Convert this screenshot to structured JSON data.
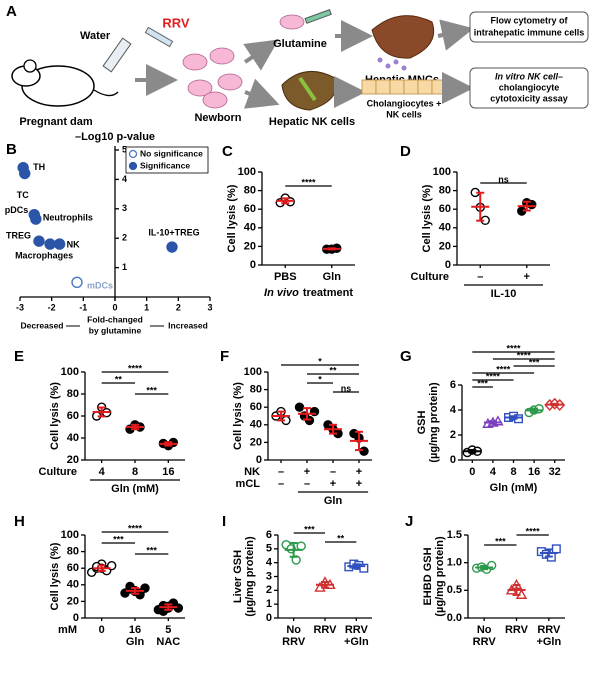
{
  "schematic": {
    "letter": "A",
    "water": "Water",
    "rrv": "RRV",
    "dam": "Pregnant dam",
    "newborn": "Newborn",
    "glutamine": "Glutamine",
    "hepatic_mncs": "Hepatic MNCs",
    "flow": [
      "Flow cytometry of",
      "intrahepatic immune cells"
    ],
    "hepatic_nk": "Hepatic NK cells",
    "cocult": [
      "Cholangiocytes +",
      "NK cells"
    ],
    "assay": [
      "In vitro NK cell–",
      "cholangiocyte",
      "cytotoxicity assay"
    ]
  },
  "chart_data": [
    {
      "type": "scatter",
      "letter": "B",
      "title": "–Log10 p-value",
      "xlim": [
        -3,
        3
      ],
      "xticks": [
        -3,
        -2,
        -1,
        0,
        1,
        2,
        3
      ],
      "ylim": [
        0,
        5
      ],
      "yticks": [
        1,
        2,
        3,
        4,
        5
      ],
      "xlabel": [
        "Fold-changed",
        "by glutamine"
      ],
      "left_label": "Decreased",
      "right_label": "Increased",
      "series": [
        {
          "name": "No significance",
          "color": "#4a78c0",
          "label_color": "#8aa0c8",
          "filled": false,
          "x": [
            -1.2
          ],
          "values": [
            0.5
          ],
          "labels": [
            "mDCs"
          ]
        },
        {
          "name": "Significance",
          "color": "#2a55a8",
          "label_color": "#000000",
          "filled": true,
          "x": [
            -2.9,
            -2.85,
            -2.55,
            -2.5,
            -2.4,
            -2.05,
            -1.75,
            1.8
          ],
          "values": [
            4.4,
            4.2,
            2.8,
            2.65,
            1.9,
            1.8,
            1.8,
            1.7
          ],
          "labels": [
            "TH",
            "TC",
            "pDCs",
            "Neutrophils",
            "TREG",
            "Macrophages",
            "NK",
            "IL-10+TREG"
          ]
        }
      ]
    },
    {
      "type": "dot",
      "letter": "C",
      "ylabel": [
        "Cell lysis (%)"
      ],
      "ylim": [
        0,
        100
      ],
      "yticks": [
        0,
        20,
        40,
        60,
        80,
        100
      ],
      "rows": [
        {
          "labels": [
            "PBS",
            "Gln"
          ]
        }
      ],
      "xlabel": {
        "italic": "In vivo",
        "rest": "treatment"
      },
      "error_color": "#e41a1c",
      "groups": [
        {
          "color": "#000000",
          "marker": "circle",
          "filled": false,
          "values": [
            67,
            72,
            68
          ]
        },
        {
          "color": "#000000",
          "marker": "circle",
          "filled": true,
          "values": [
            17,
            17,
            18
          ]
        }
      ],
      "sig": [
        {
          "from": 0,
          "to": 1,
          "label": "****"
        }
      ]
    },
    {
      "type": "dot",
      "letter": "D",
      "ylabel": [
        "Cell lysis (%)"
      ],
      "ylim": [
        0,
        100
      ],
      "yticks": [
        0,
        20,
        40,
        60,
        80,
        100
      ],
      "rows": [
        {
          "name": "Culture",
          "labels": [
            "–",
            "+"
          ]
        }
      ],
      "group_label": {
        "text": "IL-10",
        "from": 0,
        "to": 1
      },
      "error_color": "#e41a1c",
      "groups": [
        {
          "color": "#000000",
          "marker": "circle",
          "filled": false,
          "values": [
            78,
            62,
            48
          ]
        },
        {
          "color": "#000000",
          "marker": "circle",
          "filled": true,
          "values": [
            58,
            67,
            65
          ]
        }
      ],
      "sig": [
        {
          "from": 0,
          "to": 1,
          "label": "ns"
        }
      ]
    },
    {
      "type": "dot",
      "letter": "E",
      "ylabel": [
        "Cell lysis (%)"
      ],
      "ylim": [
        20,
        100
      ],
      "yticks": [
        20,
        40,
        60,
        80,
        100
      ],
      "rows": [
        {
          "name": "Culture",
          "labels": [
            "4",
            "8",
            "16"
          ]
        }
      ],
      "group_label": {
        "text": "Gln (mM)",
        "from": 0,
        "to": 2
      },
      "error_color": "#e41a1c",
      "groups": [
        {
          "color": "#000000",
          "marker": "circle",
          "filled": false,
          "values": [
            60,
            68,
            63
          ]
        },
        {
          "color": "#000000",
          "marker": "circle",
          "filled": true,
          "values": [
            48,
            52,
            50
          ]
        },
        {
          "color": "#000000",
          "marker": "circle",
          "filled": true,
          "values": [
            35,
            33,
            36
          ]
        }
      ],
      "sig": [
        {
          "from": 0,
          "to": 2,
          "label": "****"
        },
        {
          "from": 0,
          "to": 1,
          "label": "**"
        },
        {
          "from": 1,
          "to": 2,
          "label": "***"
        }
      ]
    },
    {
      "type": "dot",
      "letter": "F",
      "ylabel": [
        "Cell lysis (%)"
      ],
      "ylim": [
        0,
        100
      ],
      "yticks": [
        0,
        20,
        40,
        60,
        80,
        100
      ],
      "rows": [
        {
          "name": "NK",
          "labels": [
            "–",
            "+",
            "–",
            "+"
          ]
        },
        {
          "name": "mCL",
          "labels": [
            "–",
            "–",
            "+",
            "+"
          ]
        }
      ],
      "group_label": {
        "text": "Gln",
        "from": 1,
        "to": 3
      },
      "error_color": "#e41a1c",
      "groups": [
        {
          "color": "#000000",
          "marker": "circle",
          "filled": false,
          "values": [
            50,
            55,
            45
          ]
        },
        {
          "color": "#000000",
          "marker": "circle",
          "filled": true,
          "values": [
            60,
            50,
            45,
            55
          ]
        },
        {
          "color": "#000000",
          "marker": "circle",
          "filled": true,
          "values": [
            40,
            35,
            30
          ]
        },
        {
          "color": "#000000",
          "marker": "circle",
          "filled": true,
          "values": [
            30,
            25,
            10
          ]
        }
      ],
      "sig": [
        {
          "from": 0,
          "to": 3,
          "label": "*"
        },
        {
          "from": 1,
          "to": 3,
          "label": "**"
        },
        {
          "from": 1,
          "to": 2,
          "label": "*"
        },
        {
          "from": 2,
          "to": 3,
          "label": "ns"
        }
      ]
    },
    {
      "type": "dot",
      "letter": "G",
      "ylabel": [
        "GSH",
        "(µg/mg protein)"
      ],
      "ylim": [
        0,
        6
      ],
      "yticks": [
        0,
        2,
        4,
        6
      ],
      "rows": [
        {
          "labels": [
            "0",
            "4",
            "8",
            "16",
            "32"
          ]
        }
      ],
      "xlabel": "Gln (mM)",
      "groups": [
        {
          "color": "#000000",
          "marker": "circle",
          "filled": false,
          "values": [
            0.6,
            0.8,
            0.7
          ]
        },
        {
          "color": "#7b3fbf",
          "marker": "triangle",
          "filled": false,
          "values": [
            2.9,
            3.0,
            3.1
          ]
        },
        {
          "color": "#3050c0",
          "marker": "square",
          "filled": false,
          "values": [
            3.4,
            3.5,
            3.3
          ]
        },
        {
          "color": "#2a9a4a",
          "marker": "circle",
          "filled": false,
          "values": [
            3.8,
            4.0,
            4.1
          ]
        },
        {
          "color": "#d03030",
          "marker": "diamond",
          "filled": false,
          "values": [
            4.4,
            4.5,
            4.4
          ]
        }
      ],
      "sig": [
        {
          "from": 0,
          "to": 4,
          "label": "****"
        },
        {
          "from": 1,
          "to": 4,
          "label": "****"
        },
        {
          "from": 2,
          "to": 4,
          "label": "***"
        },
        {
          "from": 0,
          "to": 3,
          "label": "****"
        },
        {
          "from": 0,
          "to": 2,
          "label": "****"
        },
        {
          "from": 0,
          "to": 1,
          "label": "***"
        }
      ]
    },
    {
      "type": "dot",
      "letter": "H",
      "ylabel": [
        "Cell lysis (%)"
      ],
      "ylim": [
        0,
        100
      ],
      "yticks": [
        0,
        20,
        40,
        60,
        80,
        100
      ],
      "rows": [
        {
          "name": "mM",
          "labels": [
            "0",
            "16",
            "5"
          ]
        },
        {
          "labels": [
            null,
            "Gln",
            "NAC"
          ]
        }
      ],
      "error_color": "#e41a1c",
      "groups": [
        {
          "color": "#000000",
          "marker": "circle",
          "filled": false,
          "values": [
            55,
            60,
            65,
            58,
            62,
            60,
            57,
            63
          ]
        },
        {
          "color": "#000000",
          "marker": "circle",
          "filled": true,
          "values": [
            30,
            35,
            32,
            28,
            38,
            33,
            30,
            36
          ]
        },
        {
          "color": "#000000",
          "marker": "circle",
          "filled": true,
          "values": [
            10,
            15,
            12,
            18,
            8,
            14,
            16,
            12
          ]
        }
      ],
      "sig": [
        {
          "from": 0,
          "to": 2,
          "label": "****"
        },
        {
          "from": 0,
          "to": 1,
          "label": "***"
        },
        {
          "from": 1,
          "to": 2,
          "label": "***"
        }
      ]
    },
    {
      "type": "dot",
      "letter": "I",
      "ylabel": [
        "Liver GSH",
        "(µg/mg protein)"
      ],
      "ylim": [
        0,
        6
      ],
      "yticks": [
        0,
        1,
        2,
        3,
        4,
        5,
        6
      ],
      "rows": [
        {
          "labels": [
            "No",
            "RRV",
            "RRV"
          ]
        },
        {
          "labels": [
            "RRV",
            null,
            "+Gln"
          ]
        }
      ],
      "groups": [
        {
          "color": "#2a9a4a",
          "marker": "circle",
          "filled": false,
          "values": [
            5.3,
            5.0,
            4.2,
            5.2
          ]
        },
        {
          "color": "#d03030",
          "marker": "triangle",
          "filled": false,
          "values": [
            2.2,
            2.6,
            2.4
          ]
        },
        {
          "color": "#3050c0",
          "marker": "square",
          "filled": false,
          "values": [
            3.7,
            3.9,
            3.8,
            3.6
          ]
        }
      ],
      "sig": [
        {
          "from": 0,
          "to": 1,
          "label": "***"
        },
        {
          "from": 1,
          "to": 2,
          "label": "**"
        }
      ]
    },
    {
      "type": "dot",
      "letter": "J",
      "ylabel": [
        "EHBD GSH",
        "(µg/mg protein)"
      ],
      "ylim": [
        0,
        1.5
      ],
      "yticks": [
        {
          "value": 0,
          "label": "0.0"
        },
        0.5,
        {
          "value": 1,
          "label": "1.0"
        },
        1.5
      ],
      "rows": [
        {
          "labels": [
            "No",
            "RRV",
            "RRV"
          ]
        },
        {
          "labels": [
            "RRV",
            null,
            "+Gln"
          ]
        }
      ],
      "groups": [
        {
          "color": "#2a9a4a",
          "marker": "circle",
          "filled": false,
          "values": [
            0.9,
            0.92,
            0.88,
            0.95
          ]
        },
        {
          "color": "#d03030",
          "marker": "triangle",
          "filled": false,
          "values": [
            0.5,
            0.6,
            0.42
          ]
        },
        {
          "color": "#3050c0",
          "marker": "square",
          "filled": false,
          "values": [
            1.2,
            1.15,
            1.1,
            1.25
          ]
        }
      ],
      "sig": [
        {
          "from": 1,
          "to": 2,
          "label": "****"
        },
        {
          "from": 0,
          "to": 1,
          "label": "***"
        }
      ]
    }
  ]
}
